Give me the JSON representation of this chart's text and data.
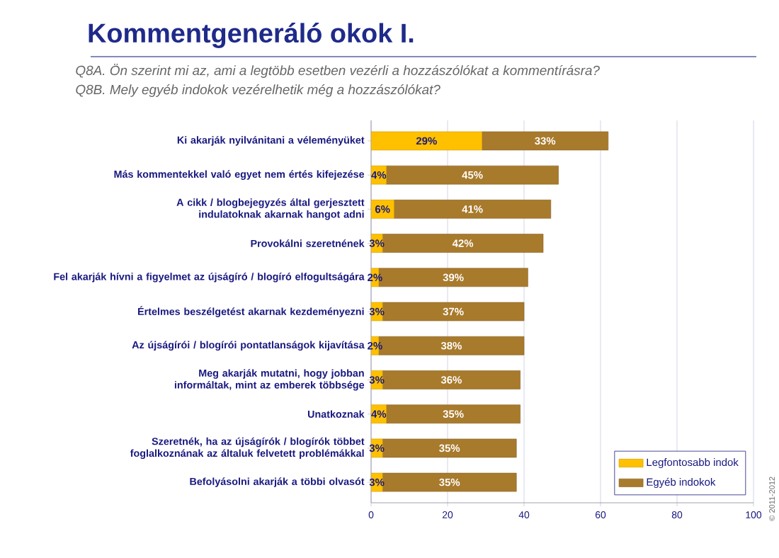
{
  "chart_data": {
    "type": "bar",
    "orientation": "horizontal",
    "stacked": true,
    "title": "Kommentgeneráló okok I.",
    "subtitle": "Q8A. Ön szerint mi az, ami a legtöbb esetben vezérli a hozzászólókat a kommentírásra?",
    "annotations": [
      "Q8B. Mely egyéb indokok vezérelhetik még a hozzászólókat?",
      "© 2011-2012"
    ],
    "categories": [
      "Ki akarják nyilvánitani a véleményüket",
      "Más kommentekkel való egyet nem értés kifejezése",
      "A cikk / blogbejegyzés által gerjesztett indulatoknak akarnak hangot adni",
      "Provokálni szeretnének",
      "Fel akarják hívni a figyelmet az újságíró / blogíró elfogultságára",
      "Értelmes beszélgetést akarnak kezdeményezni",
      "Az újságírói / blogírói pontatlanságok kijavítása",
      "Meg akarják mutatni, hogy jobban informáltak, mint az emberek többsége",
      "Unatkoznak",
      "Szeretnék, ha az újságírók / blogírók többet foglalkoznának az általuk felvetett problémákkal",
      "Befolyásolni akarják a többi olvasót"
    ],
    "series": [
      {
        "name": "Legfontosabb indok",
        "color": "#ffc000",
        "values": [
          29,
          4,
          6,
          3,
          2,
          3,
          2,
          3,
          4,
          3,
          3
        ],
        "value_labels": [
          "29%",
          "4%",
          "6%",
          "3%",
          "2%",
          "3%",
          "2%",
          "3%",
          "4%",
          "3%",
          "3%"
        ]
      },
      {
        "name": "Egyéb indokok",
        "color": "#a87a2c",
        "values": [
          33,
          45,
          41,
          42,
          39,
          37,
          38,
          36,
          35,
          35,
          35
        ],
        "value_labels": [
          "33%",
          "45%",
          "41%",
          "42%",
          "39%",
          "37%",
          "38%",
          "36%",
          "35%",
          "35%",
          "35%"
        ]
      }
    ],
    "xlim": [
      0,
      100
    ],
    "xticks": [
      0,
      20,
      40,
      60,
      80,
      100
    ],
    "grid": "x",
    "legend": "bottom right"
  }
}
